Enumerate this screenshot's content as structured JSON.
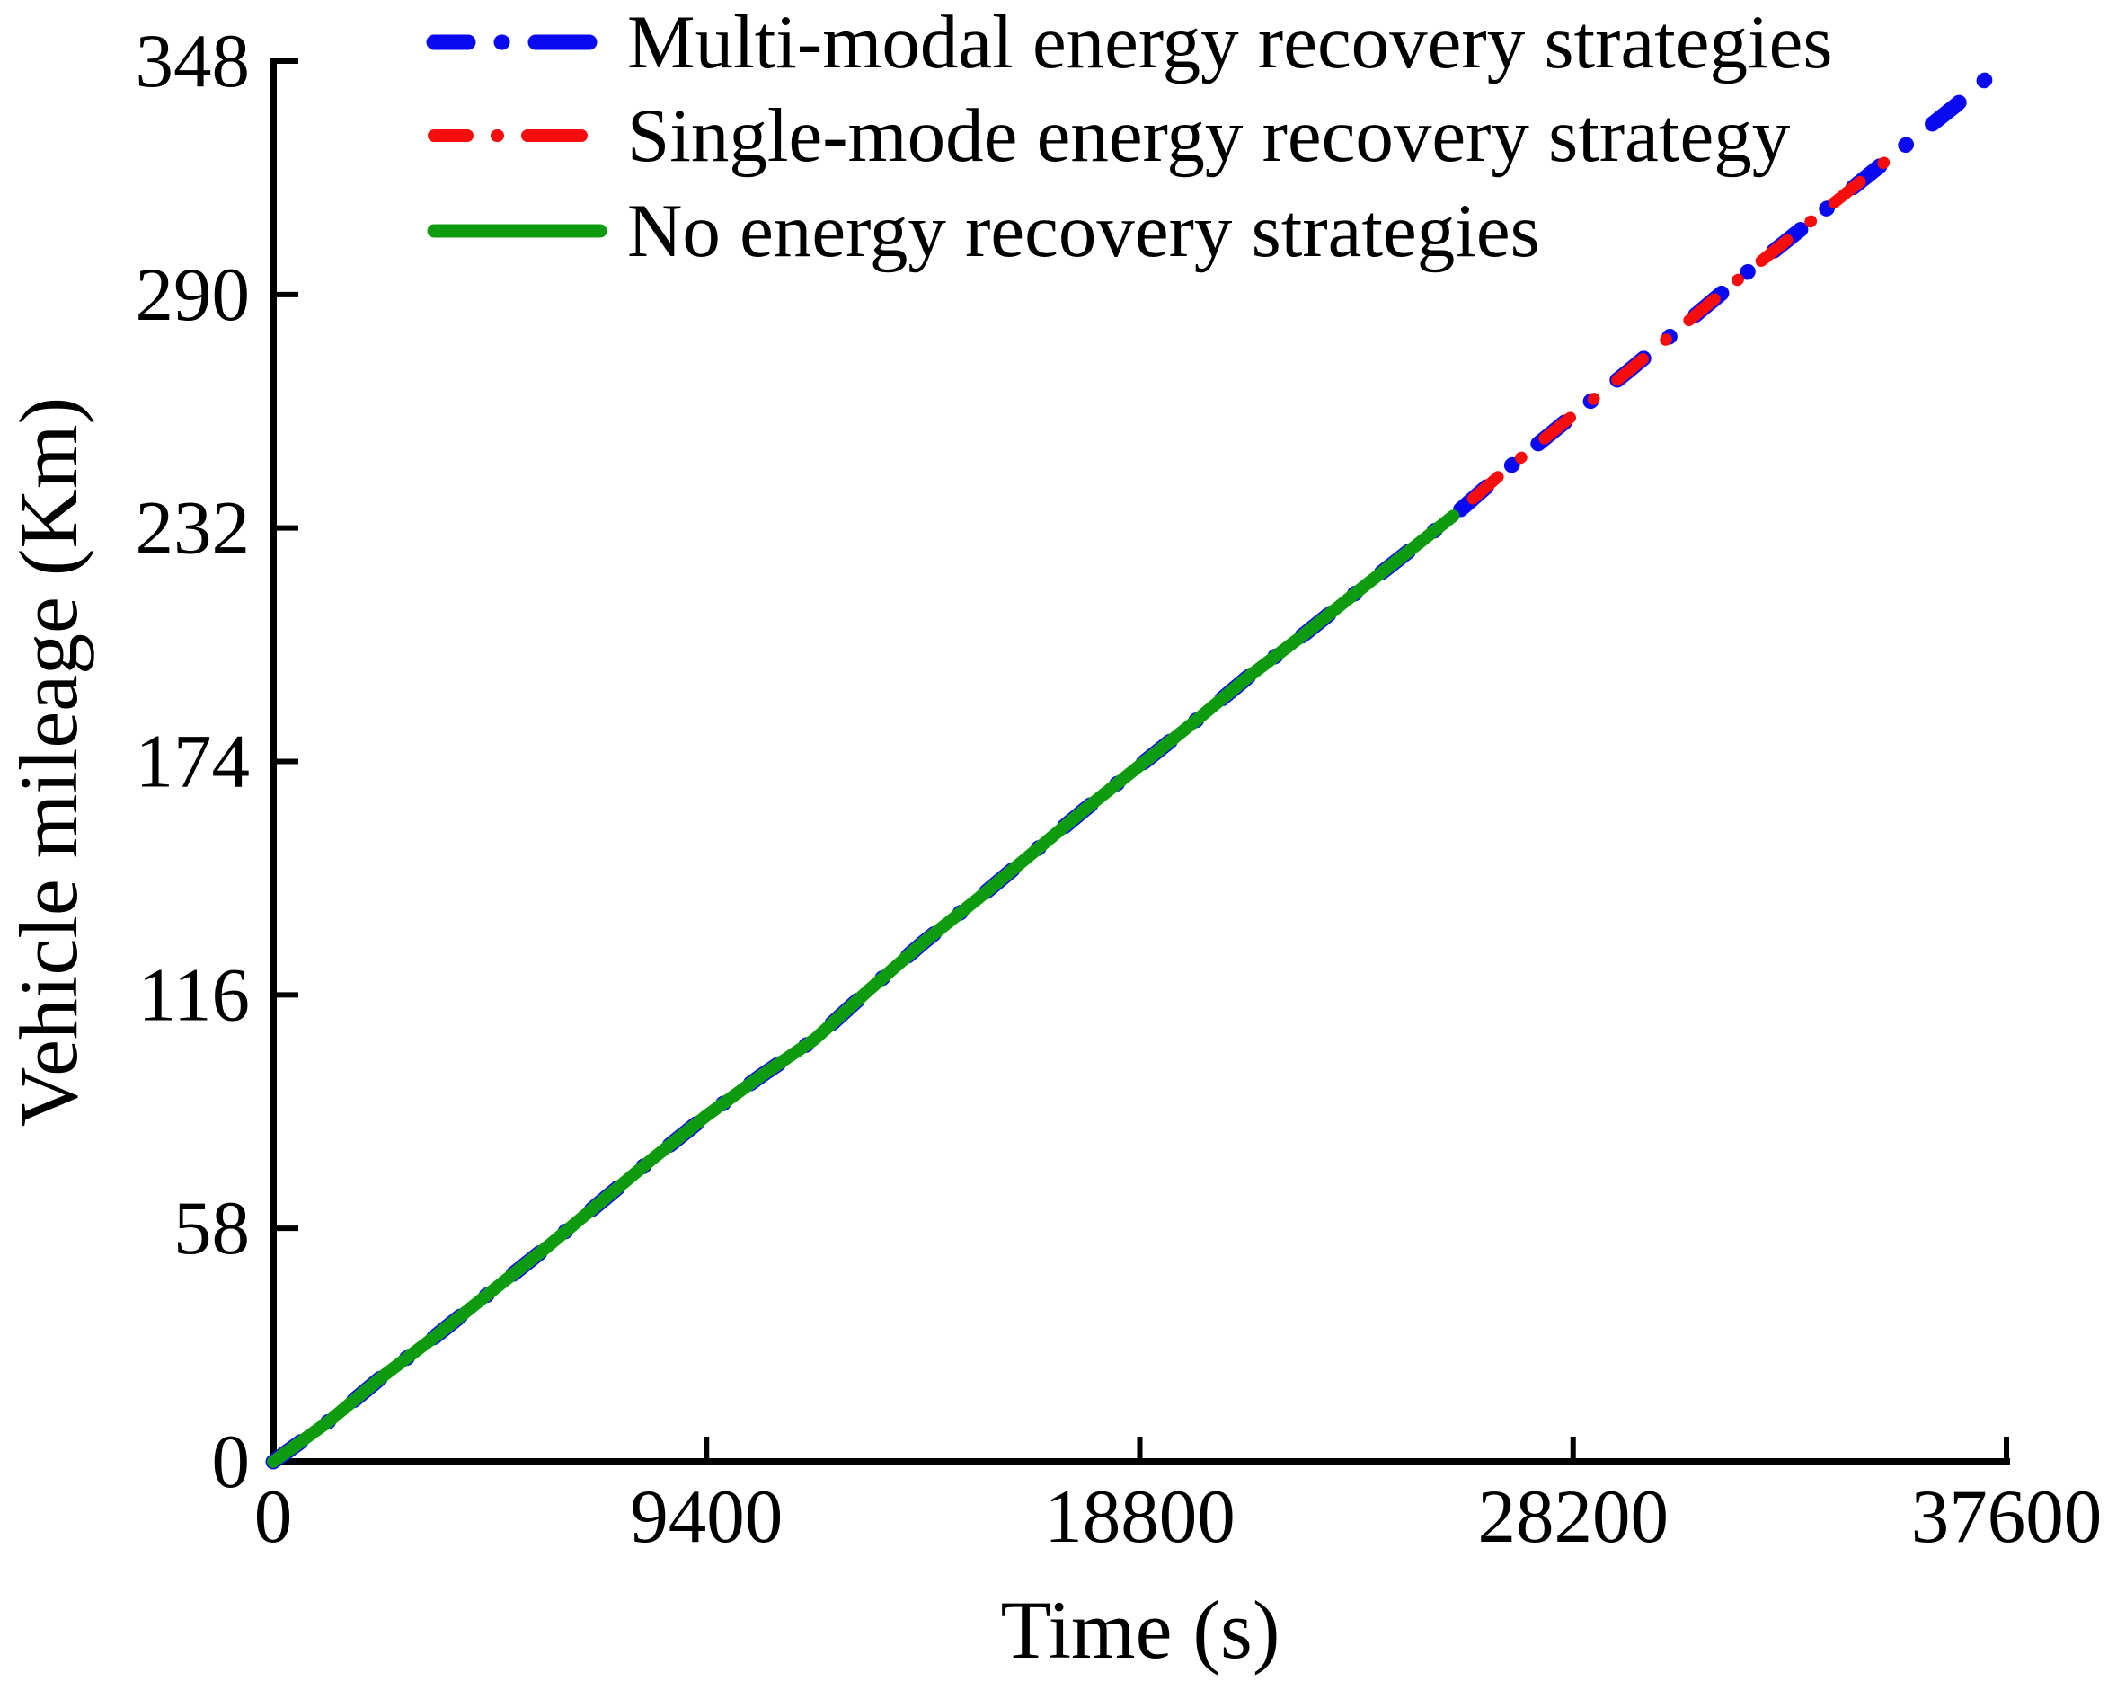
{
  "figure": {
    "background": "#ffffff",
    "axis_color": "#000000"
  },
  "chart_data": {
    "type": "line",
    "title": "",
    "xlabel": "Time (s)",
    "ylabel": "Vehicle mileage (Km)",
    "xlim": [
      0,
      37600
    ],
    "ylim": [
      0,
      348
    ],
    "x_ticks": [
      0,
      9400,
      18800,
      28200,
      37600
    ],
    "y_ticks": [
      0,
      58,
      116,
      174,
      232,
      290,
      348
    ],
    "grid": false,
    "legend_position": "top-left-inside",
    "trajectory": [
      [
        0,
        0
      ],
      [
        1200,
        10
      ],
      [
        2350,
        21
      ],
      [
        3500,
        31
      ],
      [
        4700,
        42
      ],
      [
        5900,
        53
      ],
      [
        7050,
        64
      ],
      [
        8200,
        75
      ],
      [
        9400,
        86
      ],
      [
        10600,
        96
      ],
      [
        11750,
        105
      ],
      [
        12900,
        117
      ],
      [
        14100,
        129
      ],
      [
        15300,
        140
      ],
      [
        16450,
        151
      ],
      [
        17600,
        162
      ],
      [
        18800,
        173
      ],
      [
        20000,
        184
      ],
      [
        21150,
        195
      ],
      [
        22300,
        205
      ],
      [
        23500,
        216
      ],
      [
        24500,
        225
      ],
      [
        25600,
        235
      ],
      [
        26700,
        246
      ],
      [
        28200,
        260
      ],
      [
        29400,
        271
      ],
      [
        30550,
        282
      ],
      [
        31700,
        293
      ],
      [
        32900,
        304
      ],
      [
        34100,
        315
      ],
      [
        35400,
        327
      ],
      [
        36500,
        337
      ],
      [
        37600,
        348
      ]
    ],
    "series": [
      {
        "label": "Multi-modal energy recovery strategies",
        "color": "#0a0af0",
        "line_style": "dash-dot",
        "end_time": 37600,
        "end_mileage": 348
      },
      {
        "label": "Single-mode energy recovery strategy",
        "color": "#f80d0d",
        "line_style": "dash-dot",
        "end_time": 35400,
        "end_mileage": 327
      },
      {
        "label": "No energy recovery strategies",
        "color": "#0f9b0f",
        "line_style": "solid",
        "end_time": 25600,
        "end_mileage": 235
      }
    ]
  }
}
